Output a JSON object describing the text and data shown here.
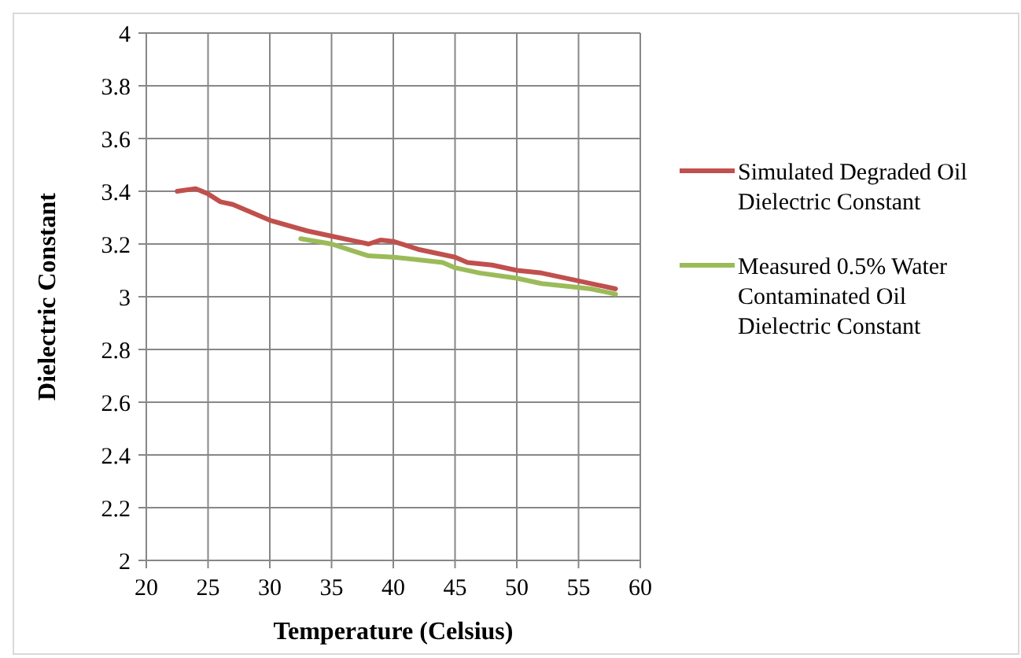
{
  "chart_data": {
    "type": "line",
    "xlabel": "Temperature (Celsius)",
    "ylabel": "Dielectric Constant",
    "xlim": [
      20,
      60
    ],
    "xticks": [
      20,
      25,
      30,
      35,
      40,
      45,
      50,
      55,
      60
    ],
    "ylim": [
      2,
      4
    ],
    "yticks": [
      {
        "value": 2,
        "label": "2"
      },
      {
        "value": 2.2,
        "label": "2.2"
      },
      {
        "value": 2.4,
        "label": "2.4"
      },
      {
        "value": 2.6,
        "label": "2.6"
      },
      {
        "value": 2.8,
        "label": "2.8"
      },
      {
        "value": 3,
        "label": "3"
      },
      {
        "value": 3.2,
        "label": "3.2"
      },
      {
        "value": 3.4,
        "label": "3.4"
      },
      {
        "value": 3.6,
        "label": "3.6"
      },
      {
        "value": 3.8,
        "label": "3.8"
      },
      {
        "value": 4,
        "label": "4"
      }
    ],
    "grid": true,
    "legend": "right",
    "marker": "none",
    "line_style": "solid",
    "series": [
      {
        "name": "Simulated Degraded Oil Dielectric Constant",
        "color": "#c0504d",
        "x": [
          22.5,
          24,
          25,
          26,
          27,
          30,
          33,
          35,
          37,
          38,
          39,
          40,
          42,
          45,
          46,
          48,
          50,
          52,
          55,
          58
        ],
        "values": [
          3.4,
          3.41,
          3.39,
          3.36,
          3.35,
          3.29,
          3.25,
          3.23,
          3.21,
          3.2,
          3.215,
          3.21,
          3.18,
          3.15,
          3.13,
          3.12,
          3.1,
          3.09,
          3.06,
          3.03
        ]
      },
      {
        "name": "Measured 0.5% Water Contaminated Oil Dielectric Constant",
        "color": "#9bbb59",
        "x": [
          32.5,
          35,
          37,
          38,
          40,
          42,
          44,
          45,
          47,
          50,
          52,
          55,
          56,
          58
        ],
        "values": [
          3.22,
          3.2,
          3.17,
          3.155,
          3.15,
          3.14,
          3.13,
          3.11,
          3.09,
          3.07,
          3.05,
          3.035,
          3.03,
          3.01
        ]
      }
    ]
  }
}
